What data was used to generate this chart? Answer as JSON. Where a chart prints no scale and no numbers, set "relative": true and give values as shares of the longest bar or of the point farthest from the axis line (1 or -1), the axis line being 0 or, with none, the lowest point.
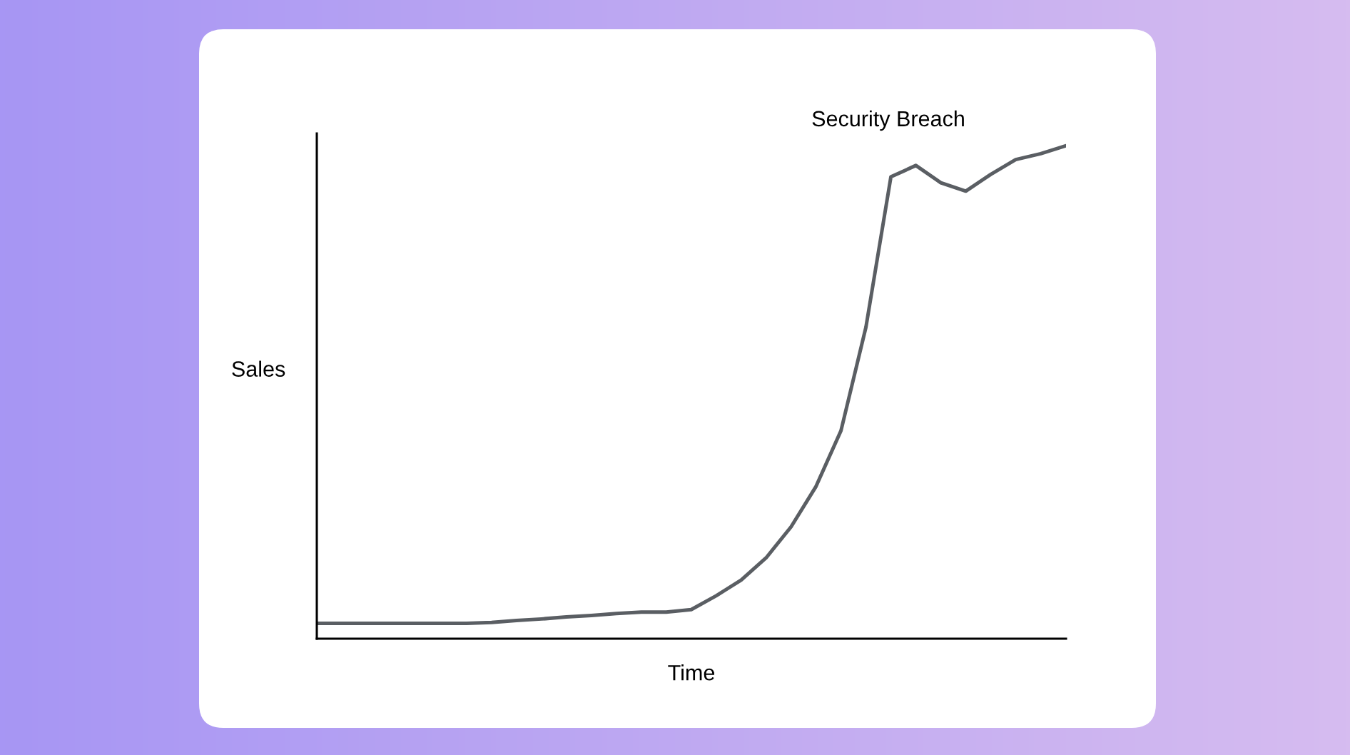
{
  "chart_data": {
    "type": "line",
    "relative": true,
    "xlabel": "Time",
    "ylabel": "Sales",
    "annotations": [
      "Security Breach"
    ],
    "legend": false,
    "marker": "none",
    "line_style": "solid",
    "categories": [
      null,
      null,
      null,
      null,
      null,
      null,
      null,
      null,
      null,
      null,
      null,
      null,
      null,
      null,
      null,
      null,
      null,
      null,
      null,
      null,
      null,
      null,
      null,
      null,
      null,
      null,
      null,
      null,
      null,
      null,
      null
    ],
    "series": [
      {
        "color": "#5a5e63",
        "values": [
          0.031,
          0.031,
          0.031,
          0.031,
          0.031,
          0.031,
          0.031,
          0.033,
          0.037,
          0.04,
          0.044,
          0.047,
          0.051,
          0.054,
          0.054,
          0.059,
          0.087,
          0.119,
          0.164,
          0.227,
          0.309,
          0.422,
          0.632,
          0.937,
          0.96,
          0.925,
          0.908,
          0.942,
          0.972,
          0.984,
          1
        ]
      }
    ]
  }
}
